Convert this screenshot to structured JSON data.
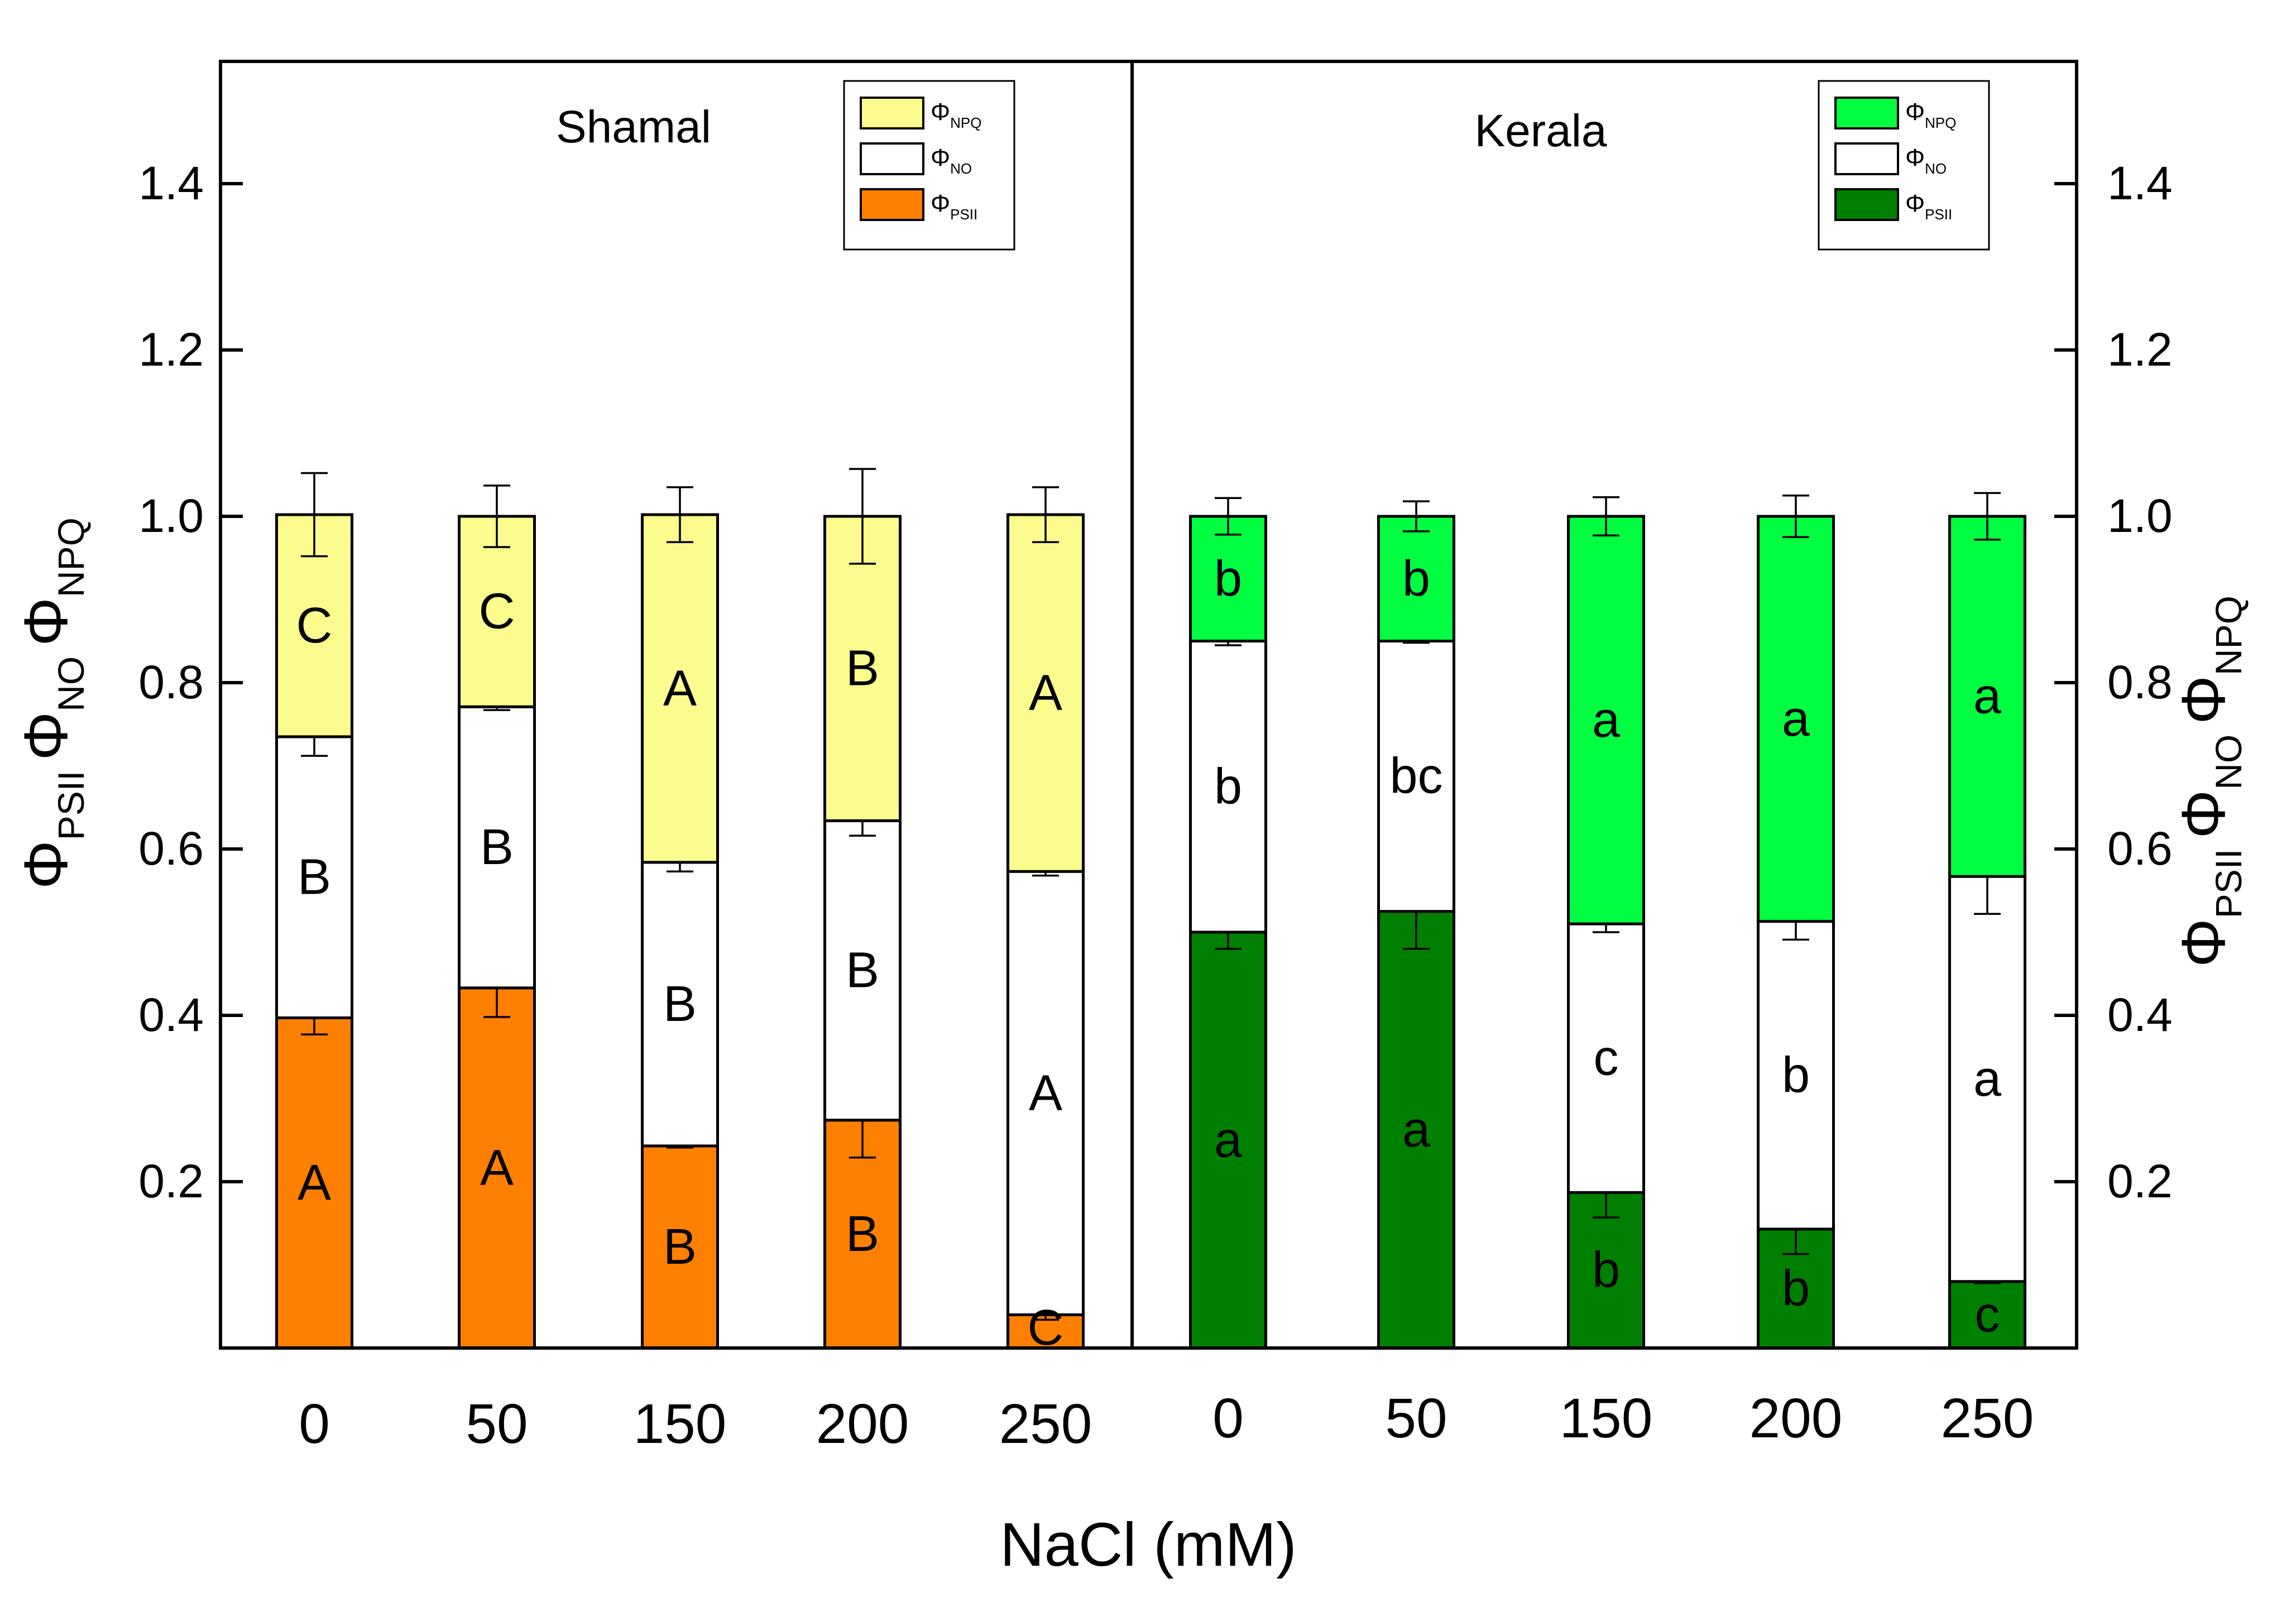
{
  "chart_data": {
    "type": "bar",
    "stacked": true,
    "xlabel": "NaCl (mM)",
    "ylabel": {
      "parts": [
        {
          "symbol": "Φ",
          "sub": "PSII"
        },
        {
          "symbol": "Φ",
          "sub": "NO"
        },
        {
          "symbol": "Φ",
          "sub": "NPQ"
        }
      ]
    },
    "ylim": [
      0,
      1.55
    ],
    "yticks": [
      0.2,
      0.4,
      0.6,
      0.8,
      1.0,
      1.2,
      1.4
    ],
    "ytick_labels": [
      "0.2",
      "0.4",
      "0.6",
      "0.8",
      "1.0",
      "1.2",
      "1.4"
    ],
    "panels": [
      {
        "title": "Shamal",
        "categories": [
          "0",
          "50",
          "150",
          "200",
          "250"
        ],
        "legend": [
          {
            "symbol": "Φ",
            "sub": "NPQ",
            "color": "#FBFB8E"
          },
          {
            "symbol": "Φ",
            "sub": "NO",
            "color": "#FFFFFF"
          },
          {
            "symbol": "Φ",
            "sub": "PSII",
            "color": "#FF8000"
          }
        ],
        "series": [
          {
            "name": "ΦPSII",
            "color": "#FF8000",
            "values": [
              0.397,
              0.433,
              0.243,
              0.274,
              0.04
            ],
            "errors": [
              0.02,
              0.035,
              0.002,
              0.045,
              0.006
            ],
            "letters": [
              "A",
              "A",
              "B",
              "B",
              "C"
            ]
          },
          {
            "name": "ΦNO",
            "color": "#FFFFFF",
            "values": [
              0.338,
              0.338,
              0.341,
              0.36,
              0.533
            ],
            "errors": [
              0.023,
              0.004,
              0.011,
              0.018,
              0.005
            ],
            "letters": [
              "B",
              "B",
              "B",
              "B",
              "A"
            ]
          },
          {
            "name": "ΦNPQ",
            "color": "#FBFB8E",
            "values": [
              0.267,
              0.229,
              0.418,
              0.366,
              0.429
            ],
            "errors": [
              0.05,
              0.037,
              0.033,
              0.057,
              0.033
            ],
            "letters": [
              "C",
              "C",
              "A",
              "B",
              "A"
            ]
          }
        ]
      },
      {
        "title": "Kerala",
        "categories": [
          "0",
          "50",
          "150",
          "200",
          "250"
        ],
        "legend": [
          {
            "symbol": "Φ",
            "sub": "NPQ",
            "color": "#00FF40"
          },
          {
            "symbol": "Φ",
            "sub": "NO",
            "color": "#FFFFFF"
          },
          {
            "symbol": "Φ",
            "sub": "PSII",
            "color": "#008000"
          }
        ],
        "series": [
          {
            "name": "ΦPSII",
            "color": "#008000",
            "values": [
              0.5,
              0.525,
              0.187,
              0.143,
              0.08
            ],
            "errors": [
              0.02,
              0.045,
              0.03,
              0.03,
              0.002
            ],
            "letters": [
              "a",
              "a",
              "b",
              "b",
              "c"
            ]
          },
          {
            "name": "ΦNO",
            "color": "#FFFFFF",
            "values": [
              0.35,
              0.325,
              0.323,
              0.37,
              0.487
            ],
            "errors": [
              0.005,
              0.002,
              0.01,
              0.022,
              0.045
            ],
            "letters": [
              "b",
              "bc",
              "c",
              "b",
              "a"
            ]
          },
          {
            "name": "ΦNPQ",
            "color": "#00FF40",
            "values": [
              0.15,
              0.15,
              0.49,
              0.487,
              0.433
            ],
            "errors": [
              0.022,
              0.018,
              0.023,
              0.025,
              0.028
            ],
            "letters": [
              "b",
              "b",
              "a",
              "a",
              "a"
            ]
          }
        ]
      }
    ]
  }
}
